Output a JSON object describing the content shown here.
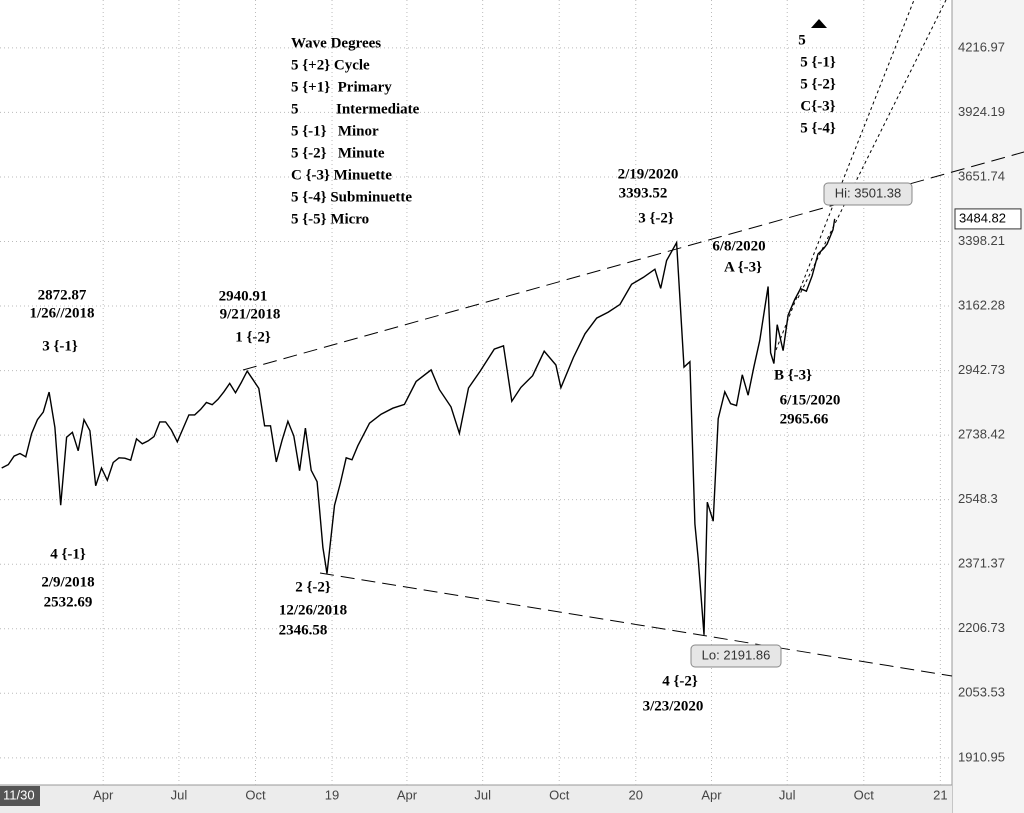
{
  "chart_data": {
    "type": "line",
    "log_scale": true,
    "grid": true,
    "color": "#000000",
    "x": [
      "2017-11-30",
      "2017-12-08",
      "2017-12-15",
      "2017-12-22",
      "2017-12-29",
      "2018-01-05",
      "2018-01-12",
      "2018-01-19",
      "2018-01-26",
      "2018-02-02",
      "2018-02-09",
      "2018-02-16",
      "2018-02-23",
      "2018-03-02",
      "2018-03-09",
      "2018-03-16",
      "2018-03-23",
      "2018-03-30",
      "2018-04-06",
      "2018-04-13",
      "2018-04-20",
      "2018-04-27",
      "2018-05-04",
      "2018-05-11",
      "2018-05-18",
      "2018-05-25",
      "2018-06-01",
      "2018-06-08",
      "2018-06-15",
      "2018-06-22",
      "2018-06-29",
      "2018-07-06",
      "2018-07-13",
      "2018-07-20",
      "2018-07-27",
      "2018-08-03",
      "2018-08-10",
      "2018-08-17",
      "2018-08-24",
      "2018-08-31",
      "2018-09-07",
      "2018-09-14",
      "2018-09-21",
      "2018-09-28",
      "2018-10-05",
      "2018-10-12",
      "2018-10-19",
      "2018-10-26",
      "2018-11-02",
      "2018-11-09",
      "2018-11-16",
      "2018-11-23",
      "2018-11-30",
      "2018-12-07",
      "2018-12-14",
      "2018-12-21",
      "2018-12-26",
      "2019-01-04",
      "2019-01-11",
      "2019-01-18",
      "2019-01-25",
      "2019-02-01",
      "2019-02-15",
      "2019-03-01",
      "2019-03-15",
      "2019-03-29",
      "2019-04-12",
      "2019-04-30",
      "2019-05-10",
      "2019-05-24",
      "2019-06-03",
      "2019-06-14",
      "2019-06-28",
      "2019-07-15",
      "2019-07-26",
      "2019-08-05",
      "2019-08-16",
      "2019-08-30",
      "2019-09-13",
      "2019-09-27",
      "2019-10-03",
      "2019-10-18",
      "2019-11-01",
      "2019-11-15",
      "2019-11-29",
      "2019-12-13",
      "2019-12-27",
      "2020-01-10",
      "2020-01-24",
      "2020-01-31",
      "2020-02-07",
      "2020-02-19",
      "2020-02-28",
      "2020-03-06",
      "2020-03-12",
      "2020-03-16",
      "2020-03-23",
      "2020-03-27",
      "2020-04-03",
      "2020-04-09",
      "2020-04-17",
      "2020-04-24",
      "2020-05-01",
      "2020-05-08",
      "2020-05-15",
      "2020-05-22",
      "2020-05-29",
      "2020-06-08",
      "2020-06-11",
      "2020-06-15",
      "2020-06-19",
      "2020-06-26",
      "2020-07-02",
      "2020-07-10",
      "2020-07-17",
      "2020-07-24",
      "2020-07-31",
      "2020-08-07",
      "2020-08-14",
      "2020-08-18",
      "2020-08-25",
      "2020-08-27"
    ],
    "values": [
      2640,
      2650,
      2675,
      2683,
      2673,
      2743,
      2786,
      2810,
      2872.87,
      2762,
      2532.69,
      2732,
      2747,
      2691,
      2786,
      2752,
      2588,
      2640,
      2604,
      2656,
      2670,
      2669,
      2663,
      2727,
      2712,
      2721,
      2734,
      2779,
      2779,
      2754,
      2718,
      2759,
      2801,
      2801,
      2818,
      2840,
      2833,
      2850,
      2874,
      2901,
      2871,
      2904,
      2940.91,
      2913,
      2885,
      2767,
      2767,
      2658,
      2723,
      2781,
      2736,
      2632,
      2760,
      2633,
      2600,
      2416,
      2346.58,
      2532,
      2596,
      2670,
      2664,
      2706,
      2775,
      2803,
      2822,
      2834,
      2907,
      2945,
      2881,
      2826,
      2744,
      2886,
      2941,
      3014,
      3025,
      2844,
      2888,
      2926,
      3007,
      2961,
      2887,
      2986,
      3066,
      3120,
      3141,
      3168,
      3240,
      3265,
      3295,
      3225,
      3327,
      3393.52,
      2954,
      2972,
      2480,
      2386,
      2191.86,
      2541,
      2488,
      2789,
      2874,
      2836,
      2830,
      2929,
      2863,
      2955,
      3044,
      3232,
      3002,
      2965.66,
      3097,
      3009,
      3130,
      3185,
      3224,
      3215,
      3271,
      3351,
      3372,
      3389,
      3443,
      3484.82
    ],
    "xlim": [
      "2017-11-28",
      "2021-01-15"
    ],
    "xticks": [
      {
        "value": "2017-11-30",
        "label": "11/30"
      },
      {
        "value": "2018-04-01",
        "label": "Apr"
      },
      {
        "value": "2018-07-01",
        "label": "Jul"
      },
      {
        "value": "2018-10-01",
        "label": "Oct"
      },
      {
        "value": "2019-01-01",
        "label": "19"
      },
      {
        "value": "2019-04-01",
        "label": "Apr"
      },
      {
        "value": "2019-07-01",
        "label": "Jul"
      },
      {
        "value": "2019-10-01",
        "label": "Oct"
      },
      {
        "value": "2020-01-01",
        "label": "20"
      },
      {
        "value": "2020-04-01",
        "label": "Apr"
      },
      {
        "value": "2020-07-01",
        "label": "Jul"
      },
      {
        "value": "2020-10-01",
        "label": "Oct"
      },
      {
        "value": "2021-01-01",
        "label": "21"
      }
    ],
    "ylim": [
      1854,
      4448
    ],
    "yticks": [
      1910.95,
      2053.53,
      2206.73,
      2371.37,
      2548.3,
      2738.42,
      2942.73,
      3162.28,
      3398.21,
      3651.74,
      3924.19,
      4216.97
    ],
    "last_price": 3484.82,
    "high_label": "Hi: 3501.38",
    "low_label": "Lo: 2191.86",
    "legend_lines": [
      "Wave Degrees",
      "5 {+2} Cycle",
      "5 {+1}  Primary",
      "5          Intermediate",
      "5 {-1}   Minor",
      "5 {-2}   Minute",
      "C {-3} Minuette",
      "5 {-4} Subminuette",
      "5 {-5} Micro"
    ],
    "annotations": [
      "2872.87",
      "1/26//2018",
      "3 {-1}",
      "2940.91",
      "9/21/2018",
      "1 {-2}",
      "4 {-1}",
      "2/9/2018",
      "2532.69",
      "2 {-2}",
      "12/26/2018",
      "2346.58",
      "2/19/2020",
      "3393.52",
      "3 {-2}",
      "6/8/2020",
      "A {-3}",
      "B {-3}",
      "6/15/2020",
      "2965.66",
      "4 {-2}",
      "3/23/2020",
      "5",
      "5 {-1}",
      "5 {-2}",
      "C{-3}",
      "5 {-4}"
    ]
  }
}
